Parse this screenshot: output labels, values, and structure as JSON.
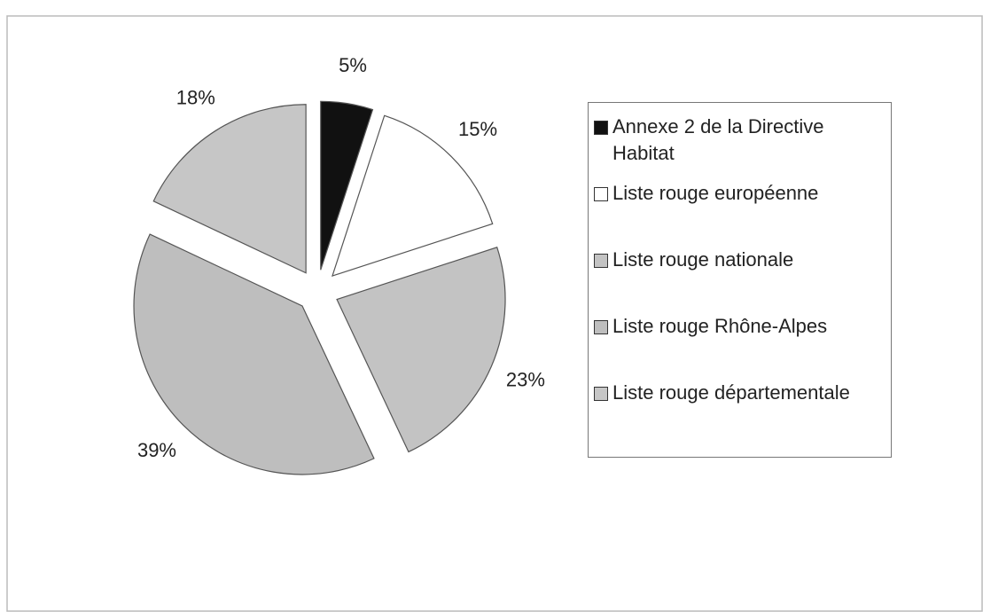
{
  "chart_data": {
    "type": "pie",
    "categories": [
      "Annexe 2 de la Directive Habitat",
      "Liste rouge européenne",
      "Liste rouge nationale",
      "Liste rouge Rhône-Alpes",
      "Liste rouge départementale"
    ],
    "values": [
      5,
      15,
      23,
      39,
      18
    ],
    "value_labels": [
      "5%",
      "15%",
      "23%",
      "39%",
      "18%"
    ],
    "colors": [
      "#111111",
      "#ffffff",
      "#c3c3c3",
      "#bebebe",
      "#c6c6c6"
    ],
    "legend": "right"
  }
}
